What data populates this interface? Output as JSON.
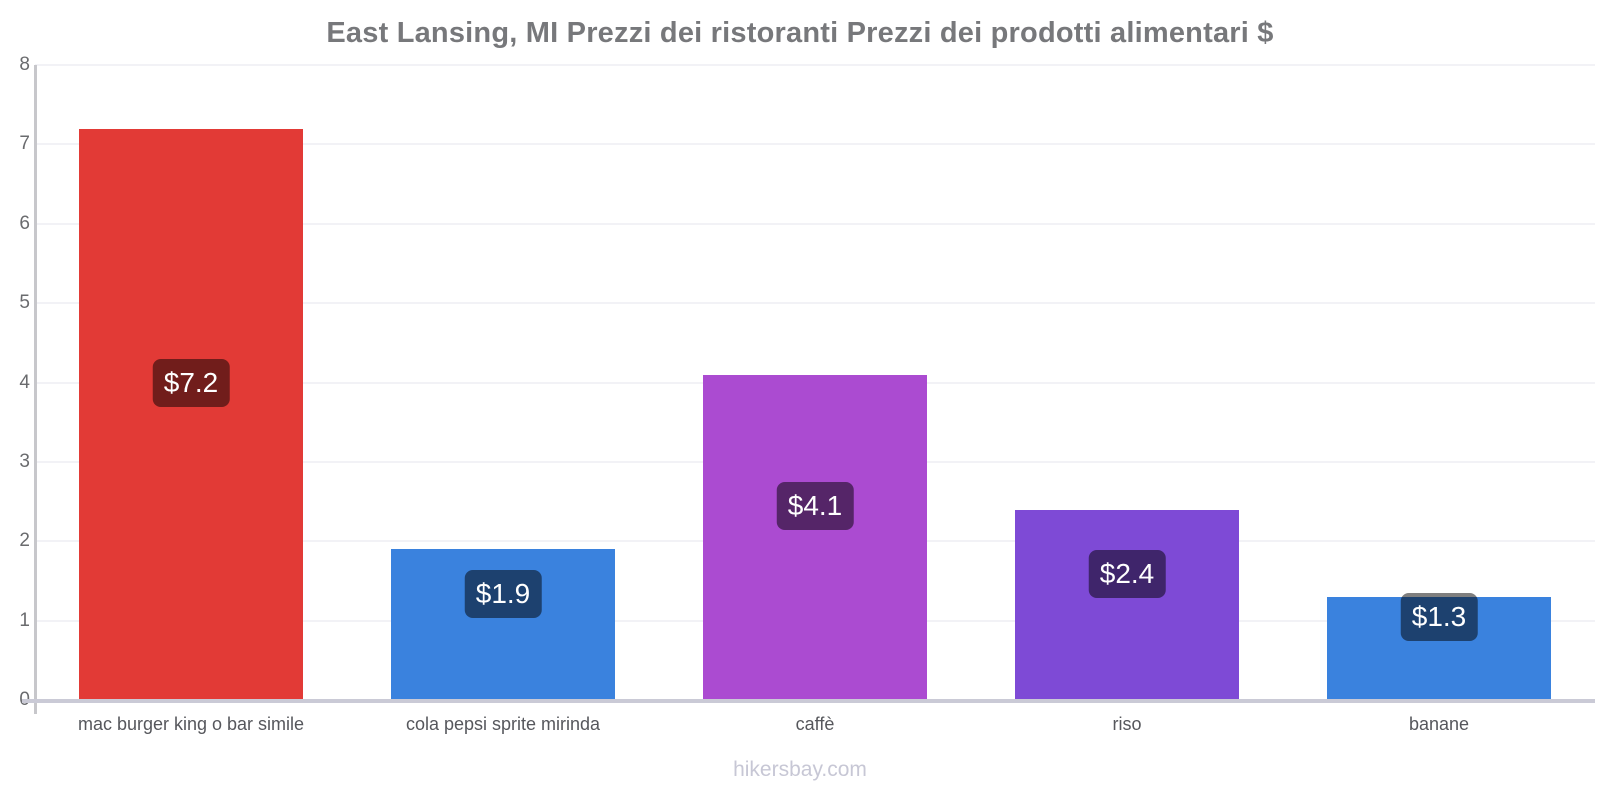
{
  "title": "East Lansing, MI Prezzi dei ristoranti Prezzi dei prodotti alimentari $",
  "watermark": "hikersbay.com",
  "colors": {
    "title_text": "#77787b",
    "axis_vertical": "#c7c7cb",
    "axis_horizontal": "#cacad6",
    "gridline": "#f2f2f6",
    "tick_text": "#6a6b6e",
    "category_text": "#56575c",
    "badge_background": "rgba(0,0,0,0.5)",
    "badge_text": "#ffffff",
    "watermark_text": "#c7c7d5"
  },
  "chart_data": {
    "type": "bar",
    "title": "East Lansing, MI Prezzi dei ristoranti Prezzi dei prodotti alimentari $",
    "categories": [
      "mac burger king o bar simile",
      "cola pepsi sprite mirinda",
      "caffè",
      "riso",
      "banane"
    ],
    "values": [
      7.2,
      1.9,
      4.1,
      2.4,
      1.3
    ],
    "value_labels": [
      "$7.2",
      "$1.9",
      "$4.1",
      "$2.4",
      "$1.3"
    ],
    "bar_colors": [
      "#e23a36",
      "#3a82de",
      "#ab4bd1",
      "#7e4ad6",
      "#3a82de"
    ],
    "currency": "$",
    "xlabel": "",
    "ylabel": "",
    "ylim": [
      0,
      8
    ],
    "yticks": [
      0,
      1,
      2,
      3,
      4,
      5,
      6,
      7,
      8
    ],
    "grid": true,
    "legend_position": "none",
    "watermark": "hikersbay.com"
  }
}
